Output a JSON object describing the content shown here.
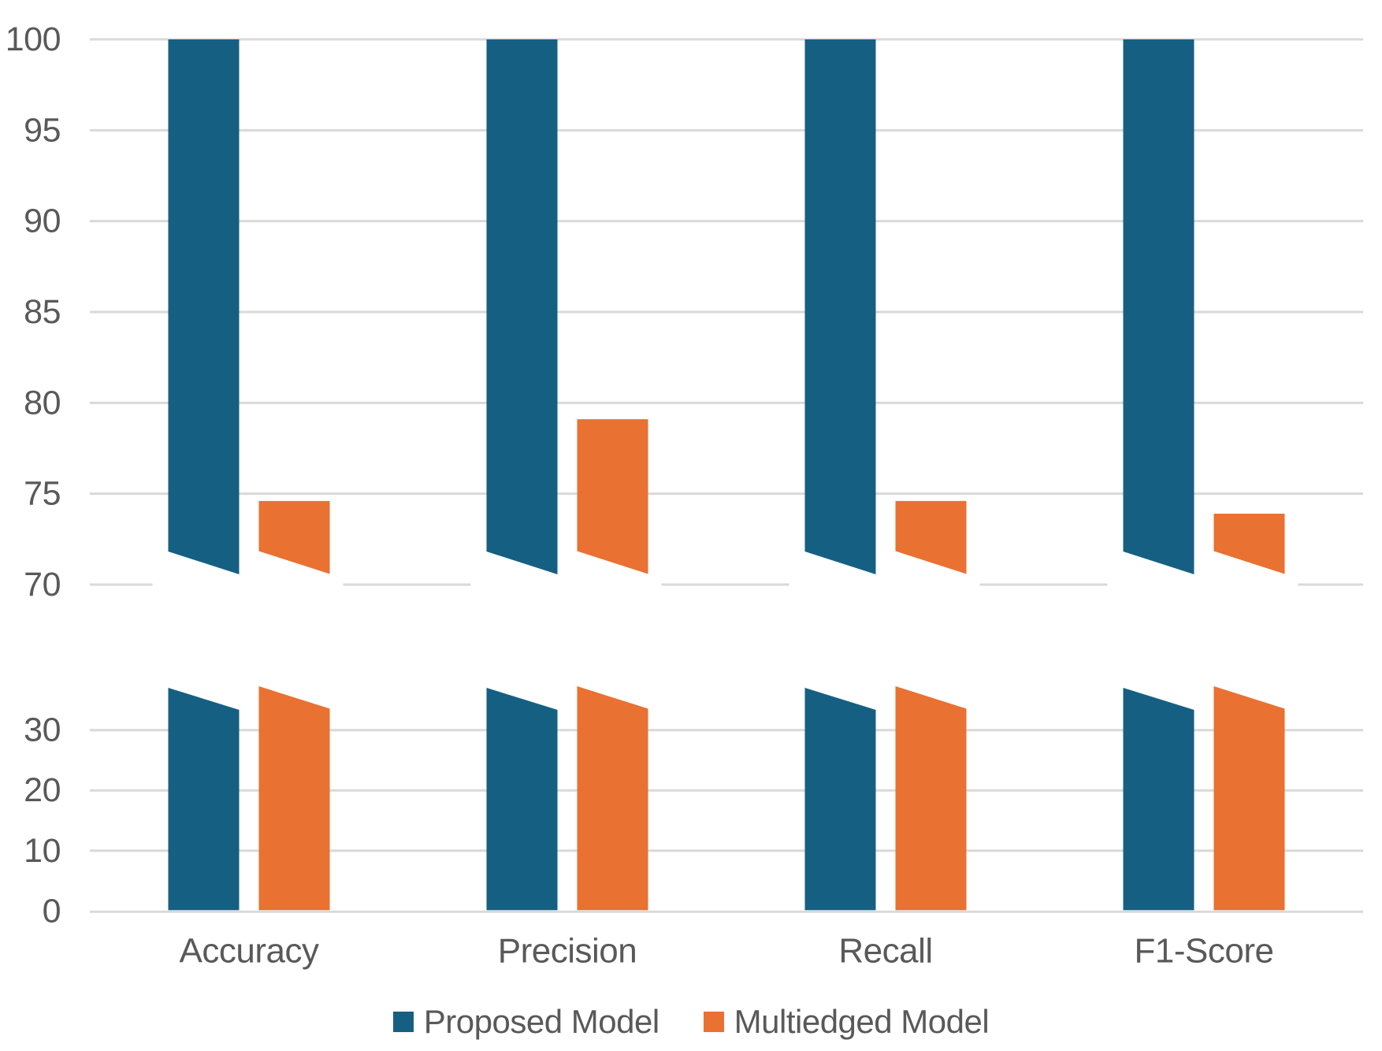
{
  "chart_data": {
    "type": "bar",
    "title": "",
    "categories": [
      "Accuracy",
      "Precision",
      "Recall",
      "F1-Score"
    ],
    "series": [
      {
        "name": "Proposed Model",
        "color": "#156082",
        "values": [
          100,
          100,
          100,
          100
        ],
        "clipped_at_axis_top": true
      },
      {
        "name": "Multiedged Model",
        "color": "#E97132",
        "values": [
          74.6,
          79.1,
          74.6,
          73.9
        ]
      }
    ],
    "axis": {
      "broken": true,
      "top_panel": {
        "range": [
          70,
          100
        ],
        "ticks": [
          100,
          95,
          90,
          85,
          80,
          75,
          70
        ]
      },
      "bottom_panel": {
        "range": [
          0,
          38
        ],
        "ticks": [
          30,
          20,
          10,
          0
        ]
      }
    },
    "grid": true,
    "legend_position": "bottom",
    "colors": {
      "gridline": "#D9D9D9",
      "tick_label": "#595959",
      "background": "#FFFFFF"
    }
  }
}
